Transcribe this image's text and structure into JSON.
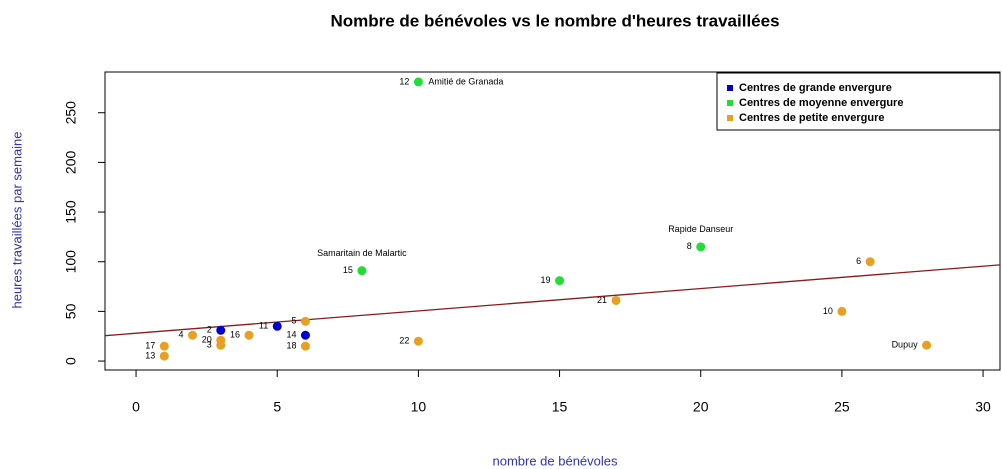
{
  "chart_data": {
    "type": "scatter",
    "title": "Nombre de bénévoles vs le nombre d'heures travaillées",
    "x_label": "nombre de bénévoles",
    "y_label": "heures travaillées par semaine",
    "xlim": [
      -1.1,
      30.6
    ],
    "ylim": [
      -9,
      291
    ],
    "xticks": [
      0,
      5,
      10,
      15,
      20,
      25,
      30
    ],
    "yticks": [
      0,
      50,
      100,
      150,
      200,
      250
    ],
    "legend": "top-right",
    "trend_line": {
      "intercept": 28,
      "slope": 2.25,
      "color": "#8b1a1a"
    },
    "series": [
      {
        "name": "Centres de grande envergure",
        "color": "#0000cc",
        "x": [
          3,
          5,
          6
        ],
        "values": [
          31,
          35,
          26
        ],
        "labels": [
          "2",
          "11",
          "14"
        ]
      },
      {
        "name": "Centres de moyenne envergure",
        "color": "#22dd33",
        "x": [
          10,
          20,
          8,
          15
        ],
        "values": [
          281,
          115,
          91,
          81
        ],
        "labels": [
          "12",
          "8",
          "15",
          "19"
        ],
        "names": [
          {
            "text": "Amitié de Granada",
            "position": "right"
          },
          {
            "text": "Rapide Danseur",
            "position": "above"
          },
          {
            "text": "Samaritain de Malartic",
            "position": "above"
          },
          null
        ]
      },
      {
        "name": "Centres de petite envergure",
        "color": "#e8a020",
        "x": [
          26,
          17,
          25,
          28,
          10,
          6,
          6,
          4,
          2,
          3,
          3,
          1,
          1
        ],
        "values": [
          100,
          61,
          50,
          16,
          20,
          40,
          15,
          26,
          26,
          21,
          16,
          15,
          5
        ],
        "labels": [
          "6",
          "21",
          "10",
          "Dupuy",
          "22",
          "5",
          "18",
          "16",
          "4",
          "20",
          "3",
          "17",
          "13"
        ]
      }
    ]
  }
}
